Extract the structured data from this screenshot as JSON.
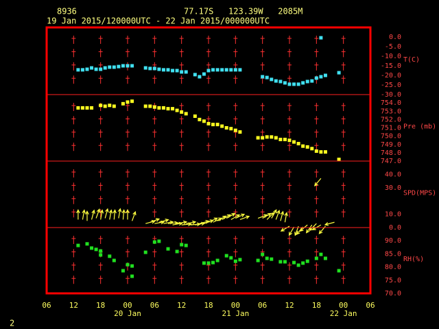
{
  "header": {
    "station": "8936",
    "location": "77.17S   123.39W   2085M",
    "period": "19 Jan 2015/120000UTC - 22 Jan 2015/000000UTC",
    "page": "2"
  },
  "chart_data": [
    {
      "type": "scatter",
      "ylabel": "T(C)",
      "xlim": [
        0,
        72
      ],
      "ylim": [
        -30,
        5
      ],
      "yticks": [
        {
          "value": 0,
          "label": "0.0"
        },
        {
          "value": -5,
          "label": "-5.0"
        },
        {
          "value": -10,
          "label": "-10.0"
        },
        {
          "value": -15,
          "label": "-15.0"
        },
        {
          "value": -20,
          "label": "-20.0"
        },
        {
          "value": -25,
          "label": "-25.0"
        },
        {
          "value": -30,
          "label": "-30.0"
        }
      ],
      "series": [
        {
          "color": "#40e0f0",
          "x": [
            7,
            8,
            9,
            10,
            11,
            12,
            13,
            14,
            15,
            16,
            17,
            18,
            19,
            22,
            23,
            24,
            25,
            26,
            27,
            28,
            29,
            30,
            31,
            33,
            34,
            35,
            36,
            37,
            38,
            39,
            40,
            41,
            42,
            43,
            48,
            49,
            50,
            51,
            52,
            53,
            54,
            55,
            56,
            57,
            58,
            59,
            60,
            61,
            62,
            61,
            65
          ],
          "values": [
            -17.1,
            -17.1,
            -16.8,
            -16.1,
            -16.8,
            -16.8,
            -16.1,
            -15.7,
            -15.7,
            -15.4,
            -15.0,
            -15.0,
            -15.0,
            -16.1,
            -16.4,
            -16.4,
            -16.8,
            -17.1,
            -17.1,
            -17.5,
            -17.5,
            -18.2,
            -18.2,
            -19.6,
            -20.7,
            -19.3,
            -17.5,
            -17.1,
            -17.1,
            -17.1,
            -17.1,
            -17.1,
            -17.1,
            -17.1,
            -20.7,
            -21.1,
            -22.1,
            -22.9,
            -23.2,
            -23.9,
            -24.6,
            -24.6,
            -24.6,
            -23.9,
            -23.2,
            -22.9,
            -21.4,
            -20.7,
            -20.0,
            -0.4,
            -18.6
          ]
        }
      ]
    },
    {
      "type": "scatter",
      "ylabel": "Pre (mb)",
      "xlim": [
        0,
        72
      ],
      "ylim": [
        747,
        755
      ],
      "yticks": [
        {
          "value": 754,
          "label": "754.0"
        },
        {
          "value": 753,
          "label": "753.0"
        },
        {
          "value": 752,
          "label": "752.0"
        },
        {
          "value": 751,
          "label": "751.0"
        },
        {
          "value": 750,
          "label": "750.0"
        },
        {
          "value": 749,
          "label": "749.0"
        },
        {
          "value": 748,
          "label": "748.0"
        },
        {
          "value": 747,
          "label": "747.0"
        }
      ],
      "series": [
        {
          "color": "#ffff20",
          "x": [
            7,
            8,
            9,
            10,
            12,
            13,
            14,
            15,
            17,
            18,
            19,
            22,
            23,
            24,
            25,
            26,
            27,
            28,
            29,
            30,
            31,
            33,
            34,
            35,
            36,
            37,
            38,
            39,
            40,
            41,
            42,
            43,
            47,
            48,
            49,
            50,
            51,
            52,
            53,
            54,
            55,
            56,
            57,
            58,
            59,
            60,
            61,
            62,
            65
          ],
          "values": [
            753.4,
            753.4,
            753.4,
            753.4,
            753.7,
            753.6,
            753.7,
            753.6,
            753.9,
            754.1,
            754.2,
            753.6,
            753.6,
            753.5,
            753.4,
            753.4,
            753.3,
            753.3,
            753.1,
            752.9,
            752.7,
            752.4,
            752.0,
            751.8,
            751.5,
            751.4,
            751.4,
            751.2,
            751.0,
            750.9,
            750.7,
            750.5,
            749.8,
            749.8,
            749.9,
            749.9,
            749.8,
            749.6,
            749.6,
            749.5,
            749.3,
            749.1,
            748.8,
            748.7,
            748.5,
            748.2,
            748.1,
            748.1,
            747.2
          ]
        }
      ]
    },
    {
      "type": "vector",
      "ylabel": "SPD(MPS)",
      "xlim": [
        0,
        72
      ],
      "ylim": [
        0,
        50
      ],
      "yticks": [
        {
          "value": 40,
          "label": "40.0"
        },
        {
          "value": 30,
          "label": "30.0"
        },
        {
          "value": 10,
          "label": "10.0"
        },
        {
          "value": 0,
          "label": "0.0"
        }
      ],
      "series": [
        {
          "color": "#ffff40",
          "x": [
            7,
            8,
            9,
            10,
            11,
            12,
            13,
            14,
            15,
            16,
            17,
            18,
            19,
            22,
            23,
            24,
            25,
            26,
            27,
            28,
            29,
            30,
            31,
            32,
            33,
            34,
            35,
            36,
            37,
            38,
            39,
            40,
            41,
            42,
            43,
            47,
            48,
            49,
            50,
            51,
            52,
            53,
            54,
            55,
            56,
            57,
            58,
            59,
            60,
            61,
            62,
            61,
            64
          ],
          "values": [
            6,
            6,
            5,
            6,
            7,
            6,
            7,
            6,
            6,
            7,
            6,
            6,
            5,
            3,
            4,
            3,
            4,
            3,
            3,
            2,
            3,
            2,
            3,
            2,
            2,
            3,
            3,
            4,
            4,
            5,
            6,
            7,
            6,
            7,
            6,
            7,
            7,
            6,
            7,
            6,
            5,
            4,
            1,
            0.5,
            1,
            0.5,
            2,
            2,
            3,
            2,
            1,
            37,
            4
          ],
          "directions": [
            0,
            10,
            0,
            15,
            20,
            10,
            15,
            10,
            5,
            10,
            5,
            0,
            20,
            75,
            70,
            80,
            75,
            80,
            85,
            80,
            80,
            85,
            80,
            85,
            80,
            75,
            70,
            65,
            65,
            60,
            60,
            60,
            60,
            65,
            70,
            70,
            60,
            45,
            30,
            20,
            15,
            10,
            240,
            210,
            200,
            220,
            230,
            215,
            225,
            240,
            220,
            220,
            255
          ]
        }
      ]
    },
    {
      "type": "scatter",
      "ylabel": "RH(%)",
      "xlim": [
        0,
        72
      ],
      "ylim": [
        70,
        95
      ],
      "yticks": [
        {
          "value": 90,
          "label": "90.0"
        },
        {
          "value": 85,
          "label": "85.0"
        },
        {
          "value": 80,
          "label": "80.0"
        },
        {
          "value": 75,
          "label": "75.0"
        },
        {
          "value": 70,
          "label": "70.0"
        }
      ],
      "xticks": [
        {
          "value": 0,
          "label": "06"
        },
        {
          "value": 6,
          "label": "12"
        },
        {
          "value": 12,
          "label": "18"
        },
        {
          "value": 18,
          "label": "00"
        },
        {
          "value": 24,
          "label": "06"
        },
        {
          "value": 30,
          "label": "12"
        },
        {
          "value": 36,
          "label": "18"
        },
        {
          "value": 42,
          "label": "00"
        },
        {
          "value": 48,
          "label": "06"
        },
        {
          "value": 54,
          "label": "12"
        },
        {
          "value": 60,
          "label": "18"
        },
        {
          "value": 66,
          "label": "00"
        },
        {
          "value": 72,
          "label": "06"
        }
      ],
      "date_labels": [
        {
          "value": 18,
          "label": "20 Jan"
        },
        {
          "value": 42,
          "label": "21 Jan"
        },
        {
          "value": 66,
          "label": "22 Jan"
        }
      ],
      "series": [
        {
          "color": "#20e020",
          "x": [
            7,
            9,
            10,
            11,
            12,
            12,
            14,
            15,
            17,
            18,
            19,
            19,
            22,
            24,
            25,
            27,
            29,
            30,
            31,
            35,
            36,
            37,
            38,
            40,
            41,
            42,
            43,
            47,
            48,
            49,
            50,
            52,
            53,
            55,
            56,
            57,
            58,
            60,
            61,
            62,
            65
          ],
          "values": [
            88.2,
            88.8,
            87.2,
            86.7,
            86.1,
            84.6,
            84.1,
            82.5,
            78.6,
            80.9,
            80.4,
            76.5,
            85.6,
            89.5,
            89.8,
            86.9,
            85.9,
            88.5,
            88.2,
            81.5,
            81.5,
            81.7,
            82.5,
            84.3,
            83.5,
            82.2,
            82.8,
            82.5,
            84.8,
            83.3,
            83.0,
            82.0,
            82.0,
            81.7,
            80.7,
            81.5,
            82.2,
            83.3,
            84.8,
            83.3,
            78.6
          ]
        }
      ]
    }
  ]
}
